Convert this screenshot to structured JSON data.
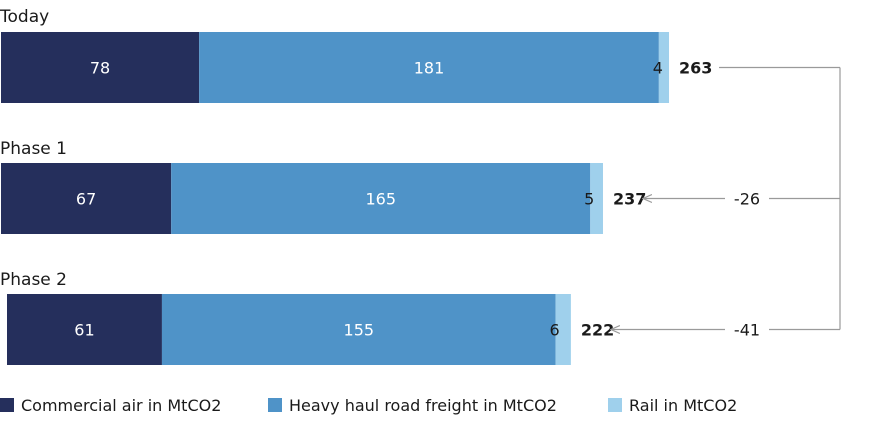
{
  "chart_data": {
    "type": "bar",
    "orientation": "horizontal",
    "stacked": true,
    "grid": false,
    "legend_position": "bottom",
    "categories": [
      "Today",
      "Phase 1",
      "Phase 2"
    ],
    "series": [
      {
        "name": "Commercial air in MtCO2",
        "values": [
          78,
          67,
          61
        ],
        "color": "#252f5c"
      },
      {
        "name": "Heavy haul road freight in MtCO2",
        "values": [
          181,
          165,
          155
        ],
        "color": "#4f93c8"
      },
      {
        "name": "Rail in MtCO2",
        "values": [
          4,
          5,
          6
        ],
        "color": "#9fd0ec"
      }
    ],
    "totals": [
      "263",
      "237",
      "222"
    ],
    "differences": [
      "-26",
      "-41"
    ],
    "xlim": [
      0,
      263
    ]
  }
}
